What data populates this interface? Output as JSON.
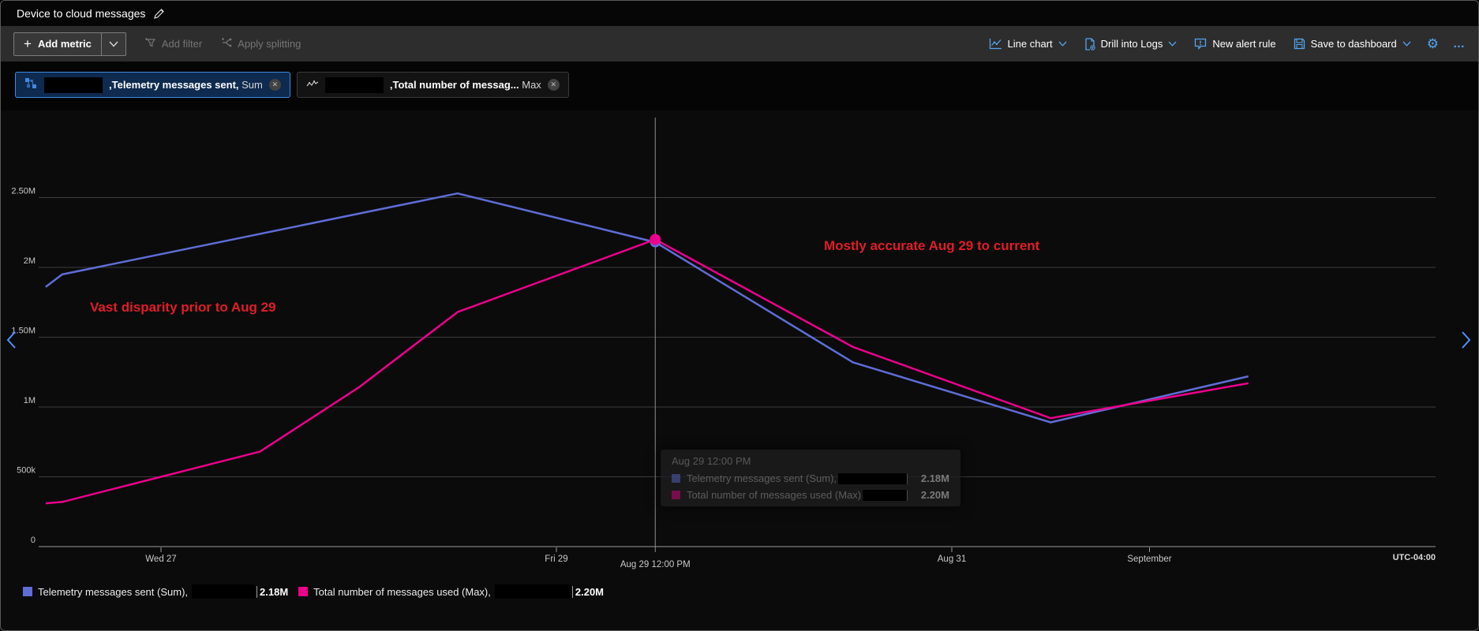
{
  "window": {
    "title": "Device to cloud messages"
  },
  "toolbar": {
    "add_metric": "Add metric",
    "add_filter": "Add filter",
    "apply_splitting": "Apply splitting",
    "chart_type": "Line chart",
    "drill_into_logs": "Drill into Logs",
    "new_alert_rule": "New alert rule",
    "save_to_dashboard": "Save to dashboard"
  },
  "chips": [
    {
      "metric": ",Telemetry messages sent,",
      "aggregation": "Sum",
      "resource_redacted": true,
      "selected": true,
      "icon": "iot-hub-icon"
    },
    {
      "metric": ",Total number of messag...",
      "aggregation": "Max",
      "resource_redacted": true,
      "selected": false,
      "icon": "metric-pulse-icon"
    }
  ],
  "annotations": [
    {
      "text": "Vast disparity prior to Aug 29"
    },
    {
      "text": "Mostly accurate Aug 29 to current"
    }
  ],
  "tooltip": {
    "timestamp": "Aug 29 12:00 PM",
    "rows": [
      {
        "label": "Telemetry messages sent (Sum),",
        "value": "2.18M",
        "redacted": true
      },
      {
        "label": "Total number of messages used (Max)",
        "value": "2.20M",
        "redacted": true
      }
    ]
  },
  "legend": [
    {
      "label": "Telemetry messages sent (Sum),",
      "value": "2.18M",
      "redacted": true
    },
    {
      "label": "Total number of messages used (Max),",
      "value": "2.20M",
      "redacted": true
    }
  ],
  "colors": {
    "series_blue": "#5f6dd6",
    "series_pink": "#ec008c",
    "accent_blue": "#54a3f0",
    "chip_selected_border": "#3f8ae0",
    "annotation_red": "#e11d28",
    "gridline": "#3d3d3d",
    "axis": "#9b9b9b",
    "crosshair": "#8f8f8f",
    "tick_label": "#c9c9c9"
  },
  "chart_data": {
    "type": "line",
    "title": "Device to cloud messages",
    "timezone_label": "UTC-04:00",
    "ylim": [
      0,
      2.75
    ],
    "y_unit": "messages (M = millions, k = thousands)",
    "y_ticks": [
      {
        "label": "2.50M",
        "value": 2.5
      },
      {
        "label": "2M",
        "value": 2.0
      },
      {
        "label": "1.50M",
        "value": 1.5
      },
      {
        "label": "1M",
        "value": 1.0
      },
      {
        "label": "500k",
        "value": 0.5
      },
      {
        "label": "0",
        "value": 0.0
      }
    ],
    "x_ticks": [
      {
        "label": "Wed 27",
        "t": 24
      },
      {
        "label": "Fri 29",
        "t": 72
      },
      {
        "label": "Aug 31",
        "t": 120
      },
      {
        "label": "September",
        "t": 144
      }
    ],
    "x_note": "t = hours since Aug 26 00:00",
    "crosshair": {
      "t": 84,
      "label": "Aug 29 12:00 PM"
    },
    "grid": true,
    "legend_position": "bottom",
    "series": [
      {
        "name": "Telemetry messages sent (Sum)",
        "color": "#5f6dd6",
        "points": [
          {
            "t": 10,
            "time": "Aug 26 10:00 AM",
            "v": 1.86
          },
          {
            "t": 12,
            "time": "Aug 26 12:00 PM",
            "v": 1.95
          },
          {
            "t": 60,
            "time": "Aug 28 12:00 PM",
            "v": 2.53
          },
          {
            "t": 84,
            "time": "Aug 29 12:00 PM",
            "v": 2.18
          },
          {
            "t": 108,
            "time": "Aug 30 12:00 PM",
            "v": 1.32
          },
          {
            "t": 132,
            "time": "Aug 31 12:00 PM",
            "v": 0.89
          },
          {
            "t": 156,
            "time": "Sep 1 12:00 PM",
            "v": 1.22
          }
        ]
      },
      {
        "name": "Total number of messages used (Max)",
        "color": "#ec008c",
        "points": [
          {
            "t": 10,
            "time": "Aug 26 10:00 AM",
            "v": 0.31
          },
          {
            "t": 12,
            "time": "Aug 26 12:00 PM",
            "v": 0.32
          },
          {
            "t": 24,
            "time": "Aug 27 12:00 AM",
            "v": 0.5
          },
          {
            "t": 36,
            "time": "Aug 27 12:00 PM",
            "v": 0.68
          },
          {
            "t": 48,
            "time": "Aug 28 12:00 AM",
            "v": 1.14
          },
          {
            "t": 60,
            "time": "Aug 28 12:00 PM",
            "v": 1.68
          },
          {
            "t": 84,
            "time": "Aug 29 12:00 PM",
            "v": 2.2
          },
          {
            "t": 108,
            "time": "Aug 30 12:00 PM",
            "v": 1.43
          },
          {
            "t": 132,
            "time": "Aug 31 12:00 PM",
            "v": 0.92
          },
          {
            "t": 156,
            "time": "Sep 1 12:00 PM",
            "v": 1.17
          }
        ]
      }
    ],
    "highlight_point": {
      "t": 84,
      "values": [
        2.18,
        2.2
      ]
    }
  }
}
